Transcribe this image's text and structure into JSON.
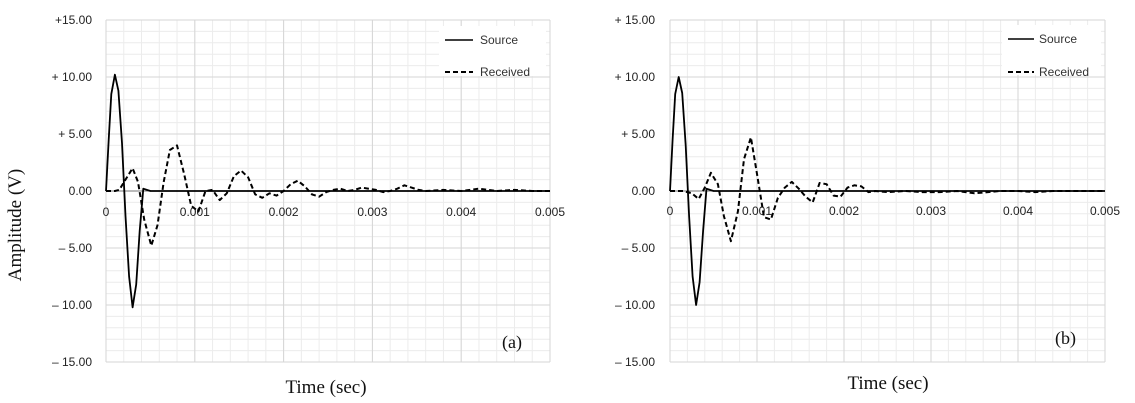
{
  "chart_data": [
    {
      "type": "line",
      "panel_label": "(a)",
      "xlabel": "Time (sec)",
      "ylabel": "Amplitude (V)",
      "xlim": [
        0,
        0.005
      ],
      "ylim": [
        -15,
        15
      ],
      "x_ticks": [
        "0",
        "0.001",
        "0.002",
        "0.003",
        "0.004",
        "0.005"
      ],
      "y_ticks": [
        "+15.00",
        "+ 10.00",
        "+ 5.00",
        "0.00",
        "–   5.00",
        "–  10.00",
        "–   15.00"
      ],
      "grid": true,
      "legend_position": "top-right",
      "series": [
        {
          "name": "Source",
          "style": "solid",
          "color": "#000000",
          "x": [
            0,
            3e-05,
            6e-05,
            0.0001,
            0.00014,
            0.00018,
            0.00022,
            0.00026,
            0.0003,
            0.00034,
            0.00038,
            0.00042,
            0.0005,
            0.001,
            0.002,
            0.003,
            0.004,
            0.005
          ],
          "y": [
            0,
            4.5,
            8.5,
            10.2,
            8.8,
            4.2,
            -2.2,
            -7.5,
            -10.2,
            -8.2,
            -3.5,
            0.2,
            0,
            0,
            0,
            0,
            0,
            0
          ]
        },
        {
          "name": "Received",
          "style": "dashed",
          "color": "#000000",
          "x": [
            0,
            0.0001,
            0.00015,
            0.00022,
            0.0003,
            0.00036,
            0.00043,
            0.00051,
            0.00058,
            0.00065,
            0.00072,
            0.0008,
            0.00088,
            0.00096,
            0.00104,
            0.00112,
            0.0012,
            0.00128,
            0.00136,
            0.00144,
            0.00152,
            0.0016,
            0.00168,
            0.00176,
            0.00184,
            0.00192,
            0.002,
            0.00208,
            0.00216,
            0.00224,
            0.00232,
            0.0024,
            0.00248,
            0.00256,
            0.00264,
            0.00272,
            0.0028,
            0.00288,
            0.00296,
            0.00304,
            0.00312,
            0.0032,
            0.00328,
            0.00336,
            0.00344,
            0.00352,
            0.0036,
            0.0038,
            0.004,
            0.0042,
            0.0044,
            0.0046,
            0.0048,
            0.005
          ],
          "y": [
            0,
            0,
            0.1,
            1.0,
            2.0,
            0.8,
            -2.5,
            -4.8,
            -3.0,
            0.8,
            3.6,
            4.0,
            1.5,
            -1.3,
            -1.8,
            0.0,
            0.1,
            -0.8,
            -0.2,
            1.3,
            1.8,
            1.2,
            -0.3,
            -0.6,
            -0.2,
            -0.4,
            0.0,
            0.6,
            0.9,
            0.4,
            -0.3,
            -0.5,
            -0.1,
            0.1,
            0.2,
            0.0,
            0.1,
            0.3,
            0.2,
            0.1,
            -0.1,
            0.0,
            0.2,
            0.5,
            0.3,
            0.1,
            0.0,
            0.1,
            0.0,
            0.2,
            0.0,
            0.1,
            0.0,
            0.0
          ]
        }
      ]
    },
    {
      "type": "line",
      "panel_label": "(b)",
      "xlabel": "Time (sec)",
      "ylabel": "",
      "xlim": [
        0,
        0.005
      ],
      "ylim": [
        -15,
        15
      ],
      "x_ticks": [
        "0",
        "0.001",
        "0.002",
        "0.003",
        "0.004",
        "0.005"
      ],
      "y_ticks": [
        "+ 15.00",
        "+ 10.00",
        "+ 5.00",
        "0.00",
        "–   5.00",
        "–  10.00",
        "–   15.00"
      ],
      "grid": true,
      "legend_position": "top-right",
      "series": [
        {
          "name": "Source",
          "style": "solid",
          "color": "#000000",
          "x": [
            0,
            3e-05,
            6e-05,
            0.0001,
            0.00014,
            0.00018,
            0.00022,
            0.00026,
            0.0003,
            0.00034,
            0.00038,
            0.00042,
            0.0005,
            0.001,
            0.002,
            0.003,
            0.004,
            0.005
          ],
          "y": [
            0,
            4.5,
            8.5,
            10.0,
            8.6,
            4.0,
            -2.2,
            -7.5,
            -10.0,
            -8.0,
            -3.5,
            0.2,
            0,
            0,
            0,
            0,
            0,
            0
          ]
        },
        {
          "name": "Received",
          "style": "dashed",
          "color": "#000000",
          "x": [
            0,
            0.00015,
            0.00025,
            0.00033,
            0.0004,
            0.00047,
            0.00055,
            0.00062,
            0.0007,
            0.00078,
            0.00085,
            0.00093,
            0.001,
            0.00108,
            0.00116,
            0.00124,
            0.00132,
            0.0014,
            0.00148,
            0.00156,
            0.00164,
            0.00172,
            0.0018,
            0.00188,
            0.00196,
            0.00204,
            0.00212,
            0.0022,
            0.00228,
            0.00236,
            0.0025,
            0.0027,
            0.0029,
            0.0031,
            0.0033,
            0.0035,
            0.0038,
            0.004,
            0.0042,
            0.0044,
            0.0046,
            0.0048,
            0.005
          ],
          "y": [
            0,
            0,
            -0.2,
            -0.7,
            0.3,
            1.6,
            0.6,
            -2.2,
            -4.4,
            -1.8,
            2.8,
            4.7,
            1.5,
            -2.3,
            -2.5,
            -0.6,
            0.3,
            0.8,
            0.2,
            -0.5,
            -1.0,
            0.7,
            0.6,
            -0.4,
            -0.5,
            0.3,
            0.5,
            0.4,
            -0.1,
            0.0,
            -0.1,
            0.0,
            -0.1,
            -0.1,
            0.0,
            -0.2,
            0.0,
            0.0,
            -0.1,
            0.0,
            0.0,
            0.0,
            0.0
          ]
        }
      ]
    }
  ]
}
